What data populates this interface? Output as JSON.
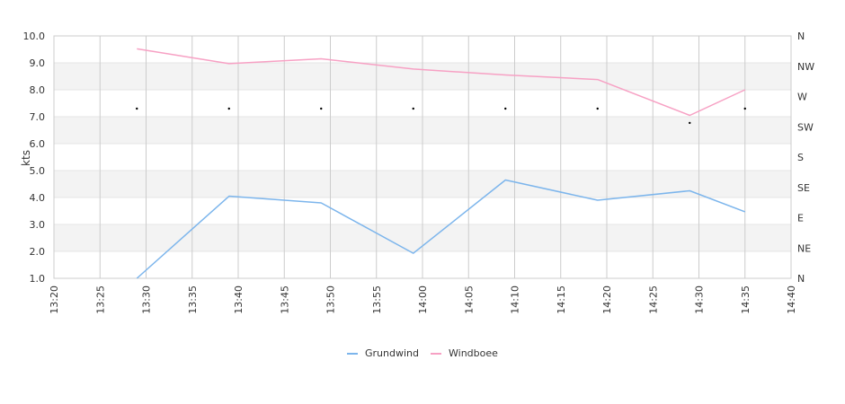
{
  "chart_data": {
    "type": "line",
    "ylabel": "kts",
    "ylim": [
      1.0,
      10.0
    ],
    "y_ticks": [
      "1.0",
      "2.0",
      "3.0",
      "4.0",
      "5.0",
      "6.0",
      "7.0",
      "8.0",
      "9.0",
      "10.0"
    ],
    "x_range_minutes": [
      800,
      880
    ],
    "x_ticks": [
      {
        "t": 800,
        "label": "13:20"
      },
      {
        "t": 805,
        "label": "13:25"
      },
      {
        "t": 810,
        "label": "13:30"
      },
      {
        "t": 815,
        "label": "13:35"
      },
      {
        "t": 820,
        "label": "13:40"
      },
      {
        "t": 825,
        "label": "13:45"
      },
      {
        "t": 830,
        "label": "13:50"
      },
      {
        "t": 835,
        "label": "13:55"
      },
      {
        "t": 840,
        "label": "14:00"
      },
      {
        "t": 845,
        "label": "14:05"
      },
      {
        "t": 850,
        "label": "14:10"
      },
      {
        "t": 855,
        "label": "14:15"
      },
      {
        "t": 860,
        "label": "14:20"
      },
      {
        "t": 865,
        "label": "14:25"
      },
      {
        "t": 870,
        "label": "14:30"
      },
      {
        "t": 875,
        "label": "14:35"
      },
      {
        "t": 880,
        "label": "14:40"
      }
    ],
    "y2_ticks": [
      "N",
      "NE",
      "E",
      "SE",
      "S",
      "SW",
      "W",
      "NW",
      "N"
    ],
    "grid": true,
    "legend": "bottom",
    "series": [
      {
        "name": "Grundwind",
        "color": "#7cb5ec",
        "points": [
          [
            809,
            1.0
          ],
          [
            819,
            4.05
          ],
          [
            829,
            3.8
          ],
          [
            839,
            1.93
          ],
          [
            849,
            4.65
          ],
          [
            859,
            3.9
          ],
          [
            869,
            4.25
          ],
          [
            875,
            3.47
          ]
        ]
      },
      {
        "name": "Windboee",
        "color": "#f7a1c4",
        "points": [
          [
            809,
            9.52
          ],
          [
            819,
            8.97
          ],
          [
            829,
            9.15
          ],
          [
            839,
            8.77
          ],
          [
            849,
            8.55
          ],
          [
            859,
            8.38
          ],
          [
            869,
            7.05
          ],
          [
            875,
            8.0
          ]
        ]
      }
    ],
    "direction_points": [
      [
        809,
        7.3
      ],
      [
        819,
        7.3
      ],
      [
        829,
        7.3
      ],
      [
        839,
        7.3
      ],
      [
        849,
        7.3
      ],
      [
        859,
        7.3
      ],
      [
        869,
        6.77
      ],
      [
        875,
        7.3
      ]
    ]
  }
}
